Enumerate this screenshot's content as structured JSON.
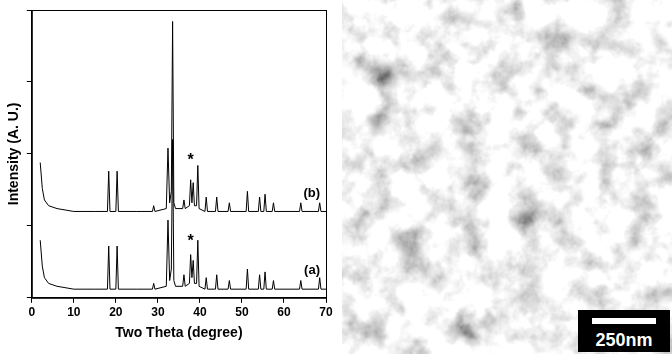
{
  "chart_data": {
    "type": "line",
    "x_label": "Two Theta (degree)",
    "y_label": "Intensity (A. U.)",
    "x": [
      2,
      2.5,
      3,
      4,
      6,
      10,
      15,
      18,
      18.3,
      18.6,
      20,
      20.3,
      20.6,
      25,
      28.7,
      29,
      29.3,
      32,
      32.4,
      32.8,
      33.2,
      33.5,
      33.8,
      34.2,
      35.9,
      36.2,
      36.5,
      37.5,
      37.8,
      38.1,
      38.4,
      38.7,
      39.2,
      39.5,
      39.8,
      41.2,
      41.5,
      41.8,
      43.7,
      44,
      44.3,
      46.7,
      47,
      47.3,
      51,
      51.3,
      51.6,
      53.9,
      54.2,
      54.5,
      55.2,
      55.5,
      55.8,
      57.2,
      57.5,
      57.8,
      63.7,
      64,
      64.3,
      68.2,
      68.5,
      68.8,
      70
    ],
    "series": [
      {
        "name": "(a)",
        "color": "#000000",
        "values": [
          20,
          11,
          7,
          5,
          4,
          3,
          3,
          3,
          18,
          3,
          3,
          18,
          3,
          3,
          3,
          5,
          3,
          4,
          27,
          6,
          10,
          55,
          6,
          4,
          4,
          8,
          4,
          5,
          15,
          7,
          13,
          5,
          5,
          20,
          4,
          3,
          7,
          3,
          3,
          8,
          3,
          3,
          6,
          3,
          3,
          10,
          3,
          3,
          8,
          3,
          3,
          9,
          3,
          3,
          6,
          3,
          3,
          6,
          3,
          3,
          7,
          3,
          3
        ]
      },
      {
        "name": "(b)",
        "color": "#000000",
        "values": [
          47,
          38,
          34,
          32,
          31,
          30,
          30,
          30,
          44,
          30,
          30,
          44,
          30,
          30,
          30,
          32,
          30,
          31,
          52,
          33,
          37,
          96,
          33,
          31,
          31,
          34,
          31,
          32,
          41,
          33,
          40,
          32,
          32,
          46,
          31,
          30,
          35,
          30,
          30,
          35,
          30,
          30,
          33,
          30,
          30,
          37,
          30,
          30,
          35,
          30,
          30,
          36,
          30,
          30,
          33,
          30,
          30,
          33,
          30,
          30,
          33,
          30,
          30
        ]
      }
    ],
    "annotations": [
      {
        "text": "*",
        "x": 37.8,
        "y": 19
      },
      {
        "text": "*",
        "x": 37.8,
        "y": 47
      }
    ],
    "xlim": [
      0,
      70
    ],
    "xticks": [
      0,
      10,
      20,
      30,
      40,
      50,
      60,
      70
    ],
    "ylim": [
      0,
      100
    ],
    "yticks": [
      0,
      25,
      50,
      75,
      100
    ],
    "tick_labels": "x",
    "grid": false,
    "line_style": "solid",
    "marker": "none"
  },
  "image": {
    "scale_bar_label": "250nm"
  }
}
